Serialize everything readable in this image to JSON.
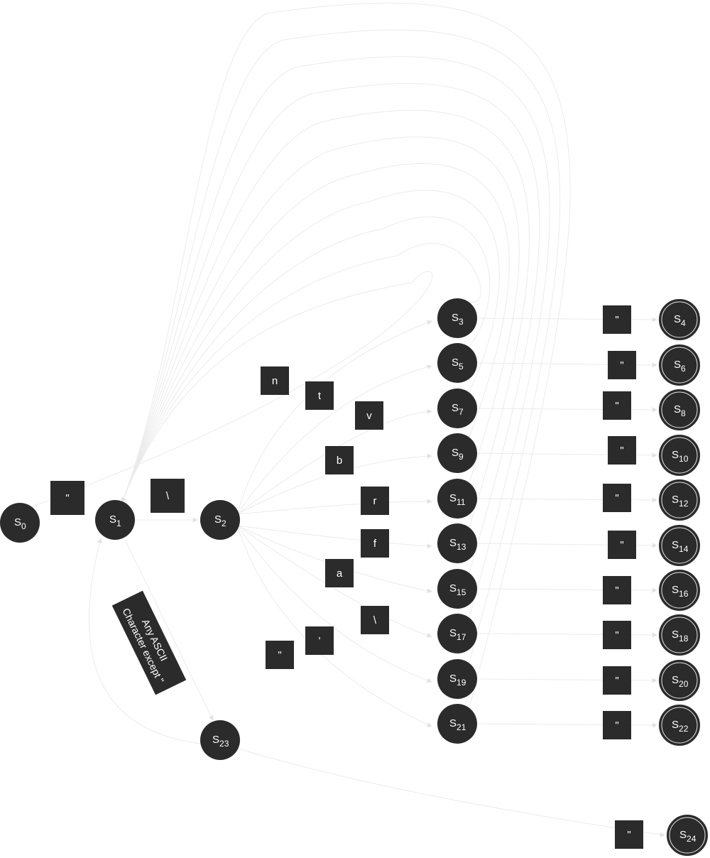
{
  "states": [
    {
      "id": "s0",
      "base": "S",
      "sub": "0",
      "accepting": false
    },
    {
      "id": "s1",
      "base": "S",
      "sub": "1",
      "accepting": false
    },
    {
      "id": "s2",
      "base": "S",
      "sub": "2",
      "accepting": false
    },
    {
      "id": "s3",
      "base": "S",
      "sub": "3",
      "accepting": false
    },
    {
      "id": "s4",
      "base": "S",
      "sub": "4",
      "accepting": true
    },
    {
      "id": "s5",
      "base": "S",
      "sub": "5",
      "accepting": false
    },
    {
      "id": "s6",
      "base": "S",
      "sub": "6",
      "accepting": true
    },
    {
      "id": "s7",
      "base": "S",
      "sub": "7",
      "accepting": false
    },
    {
      "id": "s8",
      "base": "S",
      "sub": "8",
      "accepting": true
    },
    {
      "id": "s9",
      "base": "S",
      "sub": "9",
      "accepting": false
    },
    {
      "id": "s10",
      "base": "S",
      "sub": "10",
      "accepting": true
    },
    {
      "id": "s11",
      "base": "S",
      "sub": "11",
      "accepting": false
    },
    {
      "id": "s12",
      "base": "S",
      "sub": "12",
      "accepting": true
    },
    {
      "id": "s13",
      "base": "S",
      "sub": "13",
      "accepting": false
    },
    {
      "id": "s14",
      "base": "S",
      "sub": "14",
      "accepting": true
    },
    {
      "id": "s15",
      "base": "S",
      "sub": "15",
      "accepting": false
    },
    {
      "id": "s16",
      "base": "S",
      "sub": "16",
      "accepting": true
    },
    {
      "id": "s17",
      "base": "S",
      "sub": "17",
      "accepting": false
    },
    {
      "id": "s18",
      "base": "S",
      "sub": "18",
      "accepting": true
    },
    {
      "id": "s19",
      "base": "S",
      "sub": "19",
      "accepting": false
    },
    {
      "id": "s20",
      "base": "S",
      "sub": "20",
      "accepting": true
    },
    {
      "id": "s21",
      "base": "S",
      "sub": "21",
      "accepting": false
    },
    {
      "id": "s22",
      "base": "S",
      "sub": "22",
      "accepting": true
    },
    {
      "id": "s23",
      "base": "S",
      "sub": "23",
      "accepting": false
    },
    {
      "id": "s24",
      "base": "S",
      "sub": "24",
      "accepting": true
    }
  ],
  "transitions": [
    {
      "from": "s0",
      "to": "s1",
      "label": "\""
    },
    {
      "from": "s1",
      "to": "s2",
      "label": "\\"
    },
    {
      "from": "s1",
      "to": "s23",
      "label": "Any ASCII Character except \""
    },
    {
      "from": "s23",
      "to": "s1",
      "label": ""
    },
    {
      "from": "s23",
      "to": "s24",
      "label": "\""
    },
    {
      "from": "s2",
      "to": "s3",
      "label": "n"
    },
    {
      "from": "s2",
      "to": "s5",
      "label": "t"
    },
    {
      "from": "s2",
      "to": "s7",
      "label": "v"
    },
    {
      "from": "s2",
      "to": "s9",
      "label": "b"
    },
    {
      "from": "s2",
      "to": "s11",
      "label": "r"
    },
    {
      "from": "s2",
      "to": "s13",
      "label": "f"
    },
    {
      "from": "s2",
      "to": "s15",
      "label": "a"
    },
    {
      "from": "s2",
      "to": "s17",
      "label": "\\"
    },
    {
      "from": "s2",
      "to": "s19",
      "label": "'"
    },
    {
      "from": "s2",
      "to": "s21",
      "label": "\""
    },
    {
      "from": "s3",
      "to": "s4",
      "label": "\""
    },
    {
      "from": "s5",
      "to": "s6",
      "label": "\""
    },
    {
      "from": "s7",
      "to": "s8",
      "label": "\""
    },
    {
      "from": "s9",
      "to": "s10",
      "label": "\""
    },
    {
      "from": "s11",
      "to": "s12",
      "label": "\""
    },
    {
      "from": "s13",
      "to": "s14",
      "label": "\""
    },
    {
      "from": "s15",
      "to": "s16",
      "label": "\""
    },
    {
      "from": "s17",
      "to": "s18",
      "label": "\""
    },
    {
      "from": "s19",
      "to": "s20",
      "label": "\""
    },
    {
      "from": "s21",
      "to": "s22",
      "label": "\""
    },
    {
      "from": "s3",
      "to": "s1",
      "label": ""
    },
    {
      "from": "s5",
      "to": "s1",
      "label": ""
    },
    {
      "from": "s7",
      "to": "s1",
      "label": ""
    },
    {
      "from": "s9",
      "to": "s1",
      "label": ""
    },
    {
      "from": "s11",
      "to": "s1",
      "label": ""
    },
    {
      "from": "s13",
      "to": "s1",
      "label": ""
    },
    {
      "from": "s15",
      "to": "s1",
      "label": ""
    },
    {
      "from": "s17",
      "to": "s1",
      "label": ""
    },
    {
      "from": "s19",
      "to": "s1",
      "label": ""
    },
    {
      "from": "s21",
      "to": "s1",
      "label": ""
    }
  ],
  "colors": {
    "node": "#2b2b2b",
    "edge": "#ebebeb",
    "text": "#ffffff"
  }
}
